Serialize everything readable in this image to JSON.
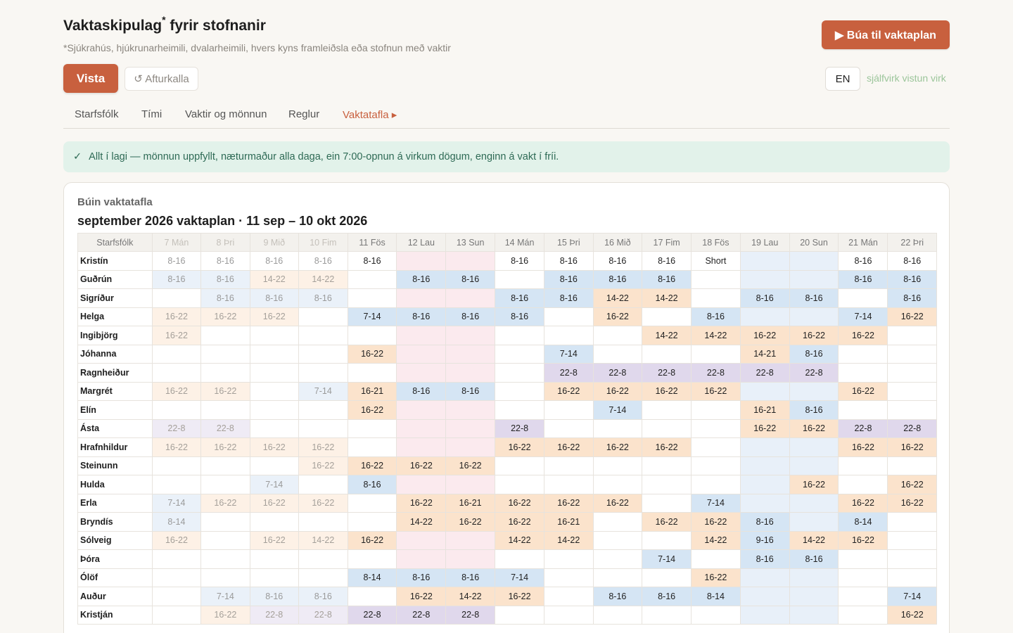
{
  "header": {
    "title": "Vaktaskipulag",
    "title_mark": "*",
    "title_rest": " fyrir stofnanir",
    "subtitle": "*Sjúkrahús, hjúkrunarheimili, dvalarheimili, hvers kyns framleiðsla eða stofnun með vaktir",
    "create_label": "▶ Búa til vaktaplan"
  },
  "toolbar": {
    "save_label": "Vista",
    "undo_label": "↺ Afturkalla",
    "lang_label": "EN",
    "autosave_label": "sjálfvirk vistun virk"
  },
  "tabs": [
    {
      "label": "Starfsfólk"
    },
    {
      "label": "Tími"
    },
    {
      "label": "Vaktir og mönnun"
    },
    {
      "label": "Reglur"
    },
    {
      "label": "Vaktatafla ▸",
      "active": true
    }
  ],
  "banner": {
    "icon": "check-icon",
    "check": "✓",
    "text": "Allt í lagi — mönnun uppfyllt, næturmaður alla daga, ein 7:00-opnun á virkum dögum, enginn á vakt í fríi."
  },
  "schedule": {
    "card_label": "Búin vaktatafla",
    "title": "september 2026 vaktaplan · 11 sep – 10 okt 2026",
    "staff_header": "Starfsfólk",
    "days": [
      {
        "label": "7 Mán",
        "past": true,
        "type": "wd"
      },
      {
        "label": "8 Þri",
        "past": true,
        "type": "wd"
      },
      {
        "label": "9 Mið",
        "past": true,
        "type": "wd"
      },
      {
        "label": "10 Fim",
        "past": true,
        "type": "wd"
      },
      {
        "label": "11 Fös",
        "past": false,
        "type": "wd"
      },
      {
        "label": "12 Lau",
        "past": false,
        "type": "we"
      },
      {
        "label": "13 Sun",
        "past": false,
        "type": "we"
      },
      {
        "label": "14 Mán",
        "past": false,
        "type": "wd"
      },
      {
        "label": "15 Þri",
        "past": false,
        "type": "wd"
      },
      {
        "label": "16 Mið",
        "past": false,
        "type": "wd"
      },
      {
        "label": "17 Fim",
        "past": false,
        "type": "wd"
      },
      {
        "label": "18 Fös",
        "past": false,
        "type": "wd"
      },
      {
        "label": "19 Lau",
        "past": false,
        "type": "wk"
      },
      {
        "label": "20 Sun",
        "past": false,
        "type": "wk"
      },
      {
        "label": "21 Mán",
        "past": false,
        "type": "wd"
      },
      {
        "label": "22 Þri",
        "past": false,
        "type": "wd"
      }
    ],
    "rows": [
      {
        "name": "Kristín",
        "shifts": [
          "8-16",
          "8-16",
          "8-16",
          "8-16",
          "8-16",
          "",
          "",
          "8-16",
          "8-16",
          "8-16",
          "8-16",
          "Short",
          "",
          "",
          "8-16",
          "8-16"
        ]
      },
      {
        "name": "Guðrún",
        "shifts": [
          "8-16",
          "8-16",
          "14-22",
          "14-22",
          "",
          "8-16",
          "8-16",
          "",
          "8-16",
          "8-16",
          "8-16",
          "",
          "",
          "",
          "8-16",
          "8-16"
        ]
      },
      {
        "name": "Sigríður",
        "shifts": [
          "",
          "8-16",
          "8-16",
          "8-16",
          "",
          "",
          "",
          "8-16",
          "8-16",
          "14-22",
          "14-22",
          "",
          "8-16",
          "8-16",
          "",
          "8-16"
        ]
      },
      {
        "name": "Helga",
        "shifts": [
          "16-22",
          "16-22",
          "16-22",
          "",
          "7-14",
          "8-16",
          "8-16",
          "8-16",
          "",
          "16-22",
          "",
          "8-16",
          "",
          "",
          "7-14",
          "16-22"
        ]
      },
      {
        "name": "Ingibjörg",
        "shifts": [
          "16-22",
          "",
          "",
          "",
          "",
          "",
          "",
          "",
          "",
          "",
          "14-22",
          "14-22",
          "16-22",
          "16-22",
          "16-22",
          ""
        ]
      },
      {
        "name": "Jóhanna",
        "shifts": [
          "",
          "",
          "",
          "",
          "16-22",
          "",
          "",
          "",
          "7-14",
          "",
          "",
          "",
          "14-21",
          "8-16",
          "",
          ""
        ]
      },
      {
        "name": "Ragnheiður",
        "shifts": [
          "",
          "",
          "",
          "",
          "",
          "",
          "",
          "",
          "22-8",
          "22-8",
          "22-8",
          "22-8",
          "22-8",
          "22-8",
          "",
          ""
        ]
      },
      {
        "name": "Margrét",
        "shifts": [
          "16-22",
          "16-22",
          "",
          "7-14",
          "16-21",
          "8-16",
          "8-16",
          "",
          "16-22",
          "16-22",
          "16-22",
          "16-22",
          "",
          "",
          "16-22",
          ""
        ]
      },
      {
        "name": "Elín",
        "shifts": [
          "",
          "",
          "",
          "",
          "16-22",
          "",
          "",
          "",
          "",
          "7-14",
          "",
          "",
          "16-21",
          "8-16",
          "",
          ""
        ]
      },
      {
        "name": "Ásta",
        "shifts": [
          "22-8",
          "22-8",
          "",
          "",
          "",
          "",
          "",
          "22-8",
          "",
          "",
          "",
          "",
          "16-22",
          "16-22",
          "22-8",
          "22-8"
        ]
      },
      {
        "name": "Hrafnhildur",
        "shifts": [
          "16-22",
          "16-22",
          "16-22",
          "16-22",
          "",
          "",
          "",
          "16-22",
          "16-22",
          "16-22",
          "16-22",
          "",
          "",
          "",
          "16-22",
          "16-22"
        ]
      },
      {
        "name": "Steinunn",
        "shifts": [
          "",
          "",
          "",
          "16-22",
          "16-22",
          "16-22",
          "16-22",
          "",
          "",
          "",
          "",
          "",
          "",
          "",
          "",
          ""
        ]
      },
      {
        "name": "Hulda",
        "shifts": [
          "",
          "",
          "7-14",
          "",
          "8-16",
          "",
          "",
          "",
          "",
          "",
          "",
          "",
          "",
          "16-22",
          "",
          "16-22"
        ]
      },
      {
        "name": "Erla",
        "shifts": [
          "7-14",
          "16-22",
          "16-22",
          "16-22",
          "",
          "16-22",
          "16-21",
          "16-22",
          "16-22",
          "16-22",
          "",
          "7-14",
          "",
          "",
          "16-22",
          "16-22"
        ]
      },
      {
        "name": "Bryndís",
        "shifts": [
          "8-14",
          "",
          "",
          "",
          "",
          "14-22",
          "16-22",
          "16-22",
          "16-21",
          "",
          "16-22",
          "16-22",
          "8-16",
          "",
          "8-14",
          ""
        ]
      },
      {
        "name": "Sólveig",
        "shifts": [
          "16-22",
          "",
          "16-22",
          "14-22",
          "16-22",
          "",
          "",
          "14-22",
          "14-22",
          "",
          "",
          "14-22",
          "9-16",
          "14-22",
          "16-22",
          ""
        ]
      },
      {
        "name": "Þóra",
        "shifts": [
          "",
          "",
          "",
          "",
          "",
          "",
          "",
          "",
          "",
          "",
          "7-14",
          "",
          "8-16",
          "8-16",
          "",
          ""
        ]
      },
      {
        "name": "Ólöf",
        "shifts": [
          "",
          "",
          "",
          "",
          "8-14",
          "8-16",
          "8-16",
          "7-14",
          "",
          "",
          "",
          "16-22",
          "",
          "",
          "",
          ""
        ]
      },
      {
        "name": "Auður",
        "shifts": [
          "",
          "7-14",
          "8-16",
          "8-16",
          "",
          "16-22",
          "14-22",
          "16-22",
          "",
          "8-16",
          "8-16",
          "8-14",
          "",
          "",
          "",
          "7-14"
        ]
      },
      {
        "name": "Kristján",
        "shifts": [
          "",
          "16-22",
          "22-8",
          "22-8",
          "22-8",
          "22-8",
          "22-8",
          "",
          "",
          "",
          "",
          "",
          "",
          "",
          "",
          "16-22"
        ]
      }
    ]
  }
}
